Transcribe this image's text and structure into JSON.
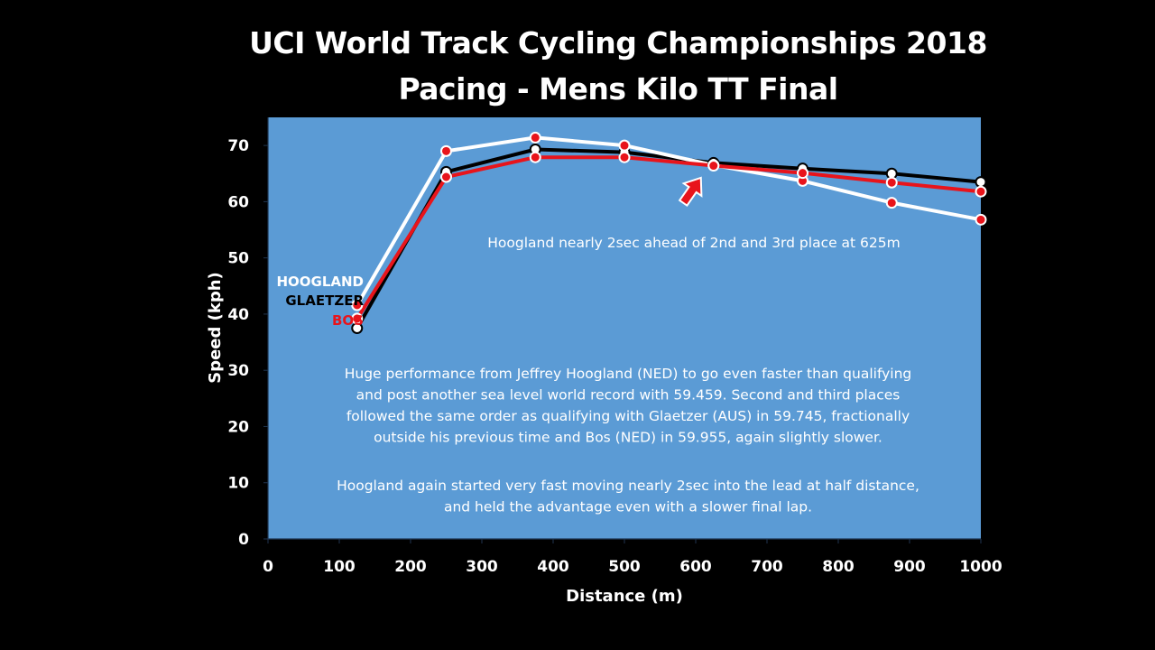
{
  "title_line1": "UCI World Track Cycling Championships 2018",
  "title_line2": "Pacing - Mens Kilo TT Final",
  "chart_data": {
    "type": "line",
    "xlabel": "Distance (m)",
    "ylabel": "Speed (kph)",
    "xlim": [
      0,
      1000
    ],
    "ylim": [
      0,
      75
    ],
    "xticks": [
      0,
      100,
      200,
      300,
      400,
      500,
      600,
      700,
      800,
      900,
      1000
    ],
    "yticks": [
      0,
      10,
      20,
      30,
      40,
      50,
      60,
      70
    ],
    "grid": false,
    "plot_background": "#5b9bd5",
    "x": [
      125,
      250,
      375,
      500,
      625,
      750,
      875,
      1000
    ],
    "series": [
      {
        "name": "HOOGLAND",
        "color": "#ffffff",
        "marker_fill": "#e8141b",
        "values": [
          41.6,
          69.0,
          71.4,
          70.0,
          66.5,
          63.7,
          59.8,
          56.8
        ]
      },
      {
        "name": "GLAETZER",
        "color": "#000000",
        "marker_fill": "#ffffff",
        "values": [
          37.5,
          65.3,
          69.3,
          68.8,
          66.9,
          65.9,
          65.0,
          63.5
        ]
      },
      {
        "name": "BOS",
        "color": "#e8141b",
        "marker_fill": "#e8141b",
        "values": [
          39.2,
          64.4,
          67.9,
          67.9,
          66.4,
          65.1,
          63.4,
          61.8
        ]
      }
    ],
    "annotations": [
      {
        "text": "Hoogland nearly 2sec ahead of 2nd and 3rd place at 625m"
      }
    ],
    "arrow_at": {
      "x": 625,
      "y": 66.5
    },
    "paragraph1": [
      "Huge performance from Jeffrey Hoogland (NED) to go even faster than qualifying",
      "and post another sea level world record with 59.459. Second and third places",
      "followed the same order as qualifying with Glaetzer (AUS) in 59.745, fractionally",
      "outside his previous time and Bos (NED) in 59.955, again slightly slower."
    ],
    "paragraph2": [
      "Hoogland again started very fast moving nearly 2sec into the lead at half distance,",
      "and held the advantage even with a slower final lap."
    ]
  }
}
